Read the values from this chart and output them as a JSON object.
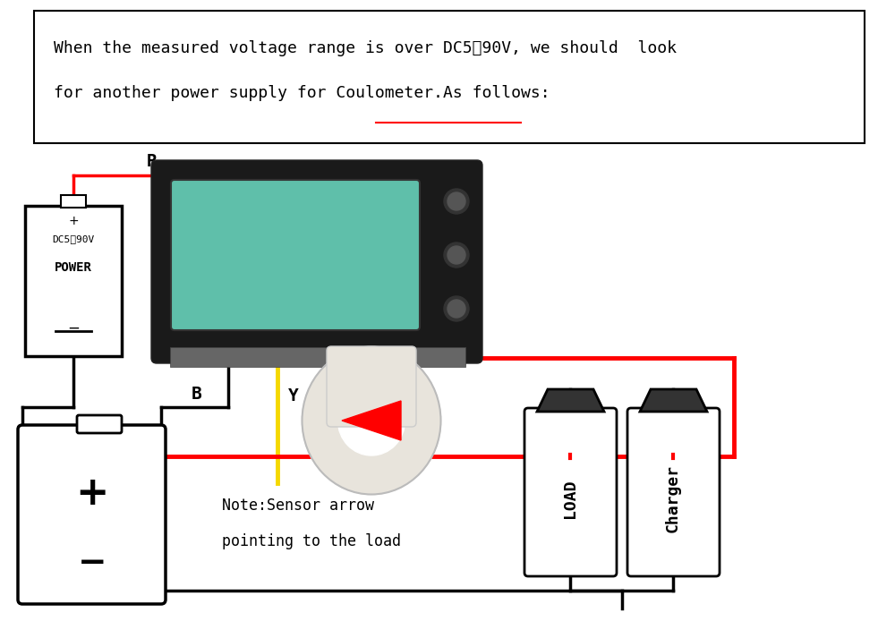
{
  "bg_color": "#ffffff",
  "text_line1": "When the measured voltage range is over DC5～90V, we should  look",
  "text_line2": "for another power supply for Coulometer.As follows:",
  "note_line1": "Note:Sensor arrow",
  "note_line2": "pointing to the load",
  "label_R": "R",
  "label_B": "B",
  "label_Y": "Y",
  "power_plus": "+",
  "power_dc": "DC5～90V",
  "power_word": "POWER",
  "power_minus": "−",
  "battery_plus": "+",
  "battery_minus": "−",
  "load_label": "LOAD",
  "charger_label": "Charger",
  "device_color": "#1a1a1a",
  "lcd_color": "#5fbfaa",
  "wire_lw": 2.5,
  "ring_color": "#e8e4dc",
  "ring_color2": "#d4d0c8"
}
